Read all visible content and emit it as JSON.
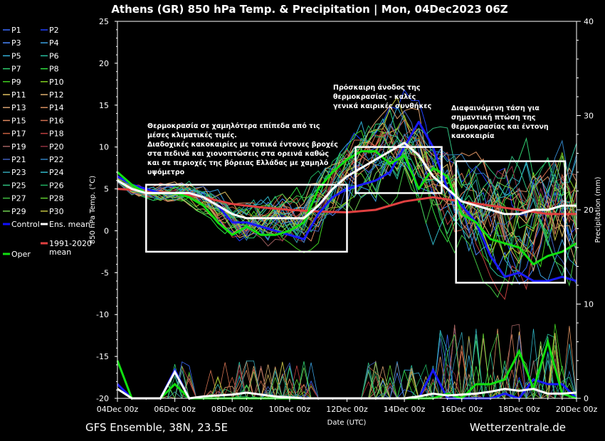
{
  "chart_data": {
    "type": "line",
    "title": "Athens  (GR)  850 hPa Temp. & Precipitation | Mon, 04Dec2023 06Z",
    "xlabel": "Date (UTC)",
    "ylabel": "850 hPa Temp. (°C)",
    "y2label": "Precipitation (mm)",
    "footer_left": "GFS Ensemble, 38N, 23.5E",
    "footer_right": "Wetterzentrale.de",
    "x_ticks": [
      "04Dec 00z",
      "06Dec 00z",
      "08Dec 00z",
      "10Dec 00z",
      "12Dec 00z",
      "14Dec 00z",
      "16Dec 00z",
      "18Dec 00z",
      "20Dec 00z"
    ],
    "x_range_days": [
      0,
      16
    ],
    "ylim": [
      -20,
      25
    ],
    "y_ticks": [
      -20,
      -15,
      -10,
      -5,
      0,
      5,
      10,
      15,
      20,
      25
    ],
    "y2lim": [
      0,
      40
    ],
    "y2_ticks": [
      0,
      10,
      20,
      30,
      40
    ],
    "grid": false,
    "legend_position": "left",
    "legend": [
      {
        "name": "P1",
        "color": "#3b6cff"
      },
      {
        "name": "P2",
        "color": "#2040ff"
      },
      {
        "name": "P3",
        "color": "#4a88ff"
      },
      {
        "name": "P4",
        "color": "#3aa0e0"
      },
      {
        "name": "P5",
        "color": "#32b0d8"
      },
      {
        "name": "P6",
        "color": "#28c0a0"
      },
      {
        "name": "P7",
        "color": "#30d070"
      },
      {
        "name": "P8",
        "color": "#30e040"
      },
      {
        "name": "P9",
        "color": "#40d020"
      },
      {
        "name": "P10",
        "color": "#80d020"
      },
      {
        "name": "P11",
        "color": "#e0c060"
      },
      {
        "name": "P12",
        "color": "#e0b070"
      },
      {
        "name": "P13",
        "color": "#d8a070"
      },
      {
        "name": "P14",
        "color": "#d89060"
      },
      {
        "name": "P15",
        "color": "#e08a60"
      },
      {
        "name": "P16",
        "color": "#d07050"
      },
      {
        "name": "P17",
        "color": "#c86040"
      },
      {
        "name": "P18",
        "color": "#c04040"
      },
      {
        "name": "P19",
        "color": "#a06060"
      },
      {
        "name": "P20",
        "color": "#903040"
      },
      {
        "name": "P21",
        "color": "#4060c0"
      },
      {
        "name": "P22",
        "color": "#3080c0"
      },
      {
        "name": "P23",
        "color": "#30a0b0"
      },
      {
        "name": "P24",
        "color": "#30b8c8"
      },
      {
        "name": "P25",
        "color": "#30c080"
      },
      {
        "name": "P26",
        "color": "#20b060"
      },
      {
        "name": "P27",
        "color": "#40c040"
      },
      {
        "name": "P28",
        "color": "#60d030"
      },
      {
        "name": "P29",
        "color": "#70d050"
      },
      {
        "name": "P30",
        "color": "#c0c040"
      },
      {
        "name": "Control",
        "color": "#1010ff",
        "thick": true
      },
      {
        "name": "Ens. mean",
        "color": "#ffffff",
        "thick": true
      },
      {
        "name": "1991-2020\nmean",
        "color": "#e04040",
        "thick": true
      },
      {
        "name": "Oper",
        "color": "#10e010",
        "thick": true
      }
    ],
    "series": [
      {
        "name": "Control",
        "color": "#1a1aff",
        "days": [
          0,
          0.5,
          1,
          1.5,
          2,
          2.5,
          3,
          3.5,
          4,
          4.5,
          5,
          5.5,
          6,
          6.5,
          7,
          7.5,
          8,
          8.5,
          9,
          9.5,
          10,
          10.5,
          11,
          11.5,
          12,
          12.5,
          13,
          13.5,
          14,
          14.5,
          15,
          15.5,
          16
        ],
        "temp": [
          6.5,
          5.5,
          5,
          4.5,
          4.5,
          4.5,
          4,
          3,
          1,
          1,
          0.5,
          0,
          -0.5,
          -1,
          2,
          4,
          5,
          5.5,
          6,
          7,
          10,
          13,
          10,
          5,
          3,
          1,
          -3,
          -5.5,
          -5,
          -6,
          -6,
          -5.5,
          -6
        ]
      },
      {
        "name": "Ens. mean",
        "color": "#ffffff",
        "days": [
          0,
          0.5,
          1,
          1.5,
          2,
          2.5,
          3,
          3.5,
          4,
          4.5,
          5,
          5.5,
          6,
          6.5,
          7,
          7.5,
          8,
          8.5,
          9,
          9.5,
          10,
          10.5,
          11,
          11.5,
          12,
          12.5,
          13,
          13.5,
          14,
          14.5,
          15,
          15.5,
          16
        ],
        "temp": [
          6,
          5,
          4.5,
          4.5,
          4.5,
          4.5,
          4,
          3,
          2,
          1.5,
          1.5,
          1.5,
          1.5,
          1.5,
          3,
          5,
          6.5,
          7.5,
          8.5,
          9.5,
          10.5,
          9,
          6.5,
          5,
          3.5,
          3,
          2.5,
          2,
          2,
          2.5,
          2.5,
          3,
          3
        ]
      },
      {
        "name": "1991-2020 mean",
        "color": "#e04040",
        "days": [
          0,
          1,
          2,
          3,
          4,
          5,
          6,
          7,
          8,
          9,
          10,
          11,
          12,
          13,
          14,
          15,
          16
        ],
        "temp": [
          5,
          4.8,
          4.5,
          4,
          3.2,
          2.8,
          2.5,
          2.3,
          2.2,
          2.5,
          3.5,
          4,
          3.5,
          3,
          2.5,
          2,
          2
        ]
      },
      {
        "name": "Oper",
        "color": "#10e010",
        "days": [
          0,
          0.5,
          1,
          1.5,
          2,
          2.5,
          3,
          3.5,
          4,
          4.5,
          5,
          5.5,
          6,
          6.5,
          7,
          7.5,
          8,
          8.5,
          9,
          9.5,
          10,
          10.5,
          11,
          11.5,
          12,
          12.5,
          13,
          13.5,
          14,
          14.5,
          15,
          15.5,
          16
        ],
        "temp": [
          7,
          5.5,
          4.5,
          4.5,
          4.5,
          4,
          3,
          1,
          -0.5,
          0.5,
          -0.5,
          -0.5,
          0,
          1,
          5,
          7,
          8.5,
          9.5,
          9.5,
          8,
          9,
          5,
          7.5,
          6.5,
          2,
          1,
          -1,
          -1.5,
          -2,
          -4,
          -3,
          -2.5,
          -1.5
        ]
      }
    ],
    "precipitation": [
      {
        "name": "Control",
        "color": "#1a1aff",
        "days": [
          0,
          0.5,
          1,
          1.5,
          2,
          2.5,
          3,
          3.5,
          4,
          4.5,
          5,
          5.5,
          6,
          6.5,
          7,
          7.5,
          8,
          8.5,
          9,
          9.5,
          10,
          10.5,
          11,
          11.5,
          12,
          12.5,
          13,
          13.5,
          14,
          14.5,
          15,
          15.5,
          16
        ],
        "mm": [
          1.5,
          0,
          0,
          0,
          3,
          0,
          0,
          0,
          0,
          0,
          0,
          0,
          0,
          0,
          0,
          0,
          0,
          0,
          0,
          0,
          0,
          0,
          3,
          0,
          0,
          0,
          0,
          0.5,
          0,
          2,
          1.5,
          1.5,
          0
        ]
      },
      {
        "name": "Oper",
        "color": "#10e010",
        "days": [
          0,
          0.5,
          1,
          1.5,
          2,
          2.5,
          3,
          3.5,
          4,
          4.5,
          5,
          5.5,
          6,
          6.5,
          7,
          7.5,
          8,
          8.5,
          9,
          9.5,
          10,
          10.5,
          11,
          11.5,
          12,
          12.5,
          13,
          13.5,
          14,
          14.5,
          15,
          15.5,
          16
        ],
        "mm": [
          4,
          0,
          0,
          0,
          1.5,
          0,
          0,
          0,
          0,
          0,
          0,
          0,
          0,
          0,
          0,
          0,
          0,
          0,
          0,
          0,
          0,
          0,
          0,
          0.5,
          0,
          1.5,
          1.5,
          2,
          5,
          1,
          6,
          0.5,
          0
        ]
      },
      {
        "name": "Ens. mean",
        "color": "#ffffff",
        "days": [
          0,
          0.5,
          1,
          1.5,
          2,
          2.5,
          3,
          3.5,
          4,
          4.5,
          5,
          5.5,
          6,
          6.5,
          7,
          7.5,
          8,
          8.5,
          9,
          9.5,
          10,
          10.5,
          11,
          11.5,
          12,
          12.5,
          13,
          13.5,
          14,
          14.5,
          15,
          15.5,
          16
        ],
        "mm": [
          1,
          0,
          0,
          0,
          2.8,
          0,
          0.2,
          0.3,
          0.4,
          0.6,
          0.4,
          0.2,
          0.1,
          0,
          0,
          0,
          0,
          0,
          0,
          0,
          0,
          0.2,
          0.5,
          0.3,
          0.4,
          0.5,
          0.7,
          1,
          0.8,
          1,
          0.5,
          0.5,
          0.6
        ]
      }
    ],
    "annotations": [
      {
        "text": "Θερμοκρασία σε χαμηλότερα επίπεδα από τις\nμέσες κλιματικές τιμές.\nΔιαδοχικές κακοκαιρίες με τοπικά έντονες βροχές\nστα πεδινά και χιονοπτώσεις στα ορεινά καθώς\nκαι σε περιοχές της βόρειας Ελλάδας με χαμηλό\nυψόμετρο",
        "box_days": [
          1,
          8
        ],
        "box_temp": [
          -2.5,
          5.5
        ]
      },
      {
        "text": "Πρόσκαιρη άνοδος της\nθερμοκρασίας - καλές\nγενικά καιρικές συνθήκες",
        "box_days": [
          8.3,
          11.3
        ],
        "box_temp": [
          4.5,
          10
        ]
      },
      {
        "text": "Διαφαινόμενη τάση για\nσημαντική πτώση της\nθερμοκρασίας και έντονη\nκακοκαιρία",
        "box_days": [
          11.8,
          15.6
        ],
        "box_temp": [
          -6.2,
          8.3
        ]
      }
    ]
  }
}
